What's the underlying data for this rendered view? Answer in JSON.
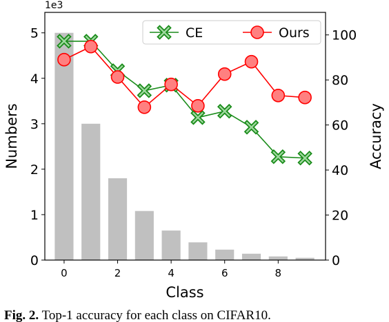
{
  "chart_data": {
    "type": "bar",
    "xlabel": "Class",
    "ylabel": "Numbers",
    "y2label": "Accuracy",
    "offset_label": "1e3",
    "categories": [
      0,
      1,
      2,
      3,
      4,
      5,
      6,
      7,
      8,
      9
    ],
    "xlim": [
      -0.72,
      9.77
    ],
    "xticks": [
      0,
      2,
      4,
      6,
      8
    ],
    "ylim": [
      0,
      5.45
    ],
    "yticks": [
      0,
      1,
      2,
      3,
      4,
      5
    ],
    "y2lim": [
      0,
      110
    ],
    "y2ticks": [
      0,
      20,
      40,
      60,
      80,
      100
    ],
    "legend": "upper right",
    "series": [
      {
        "type": "bar",
        "color": "#c0c0c0",
        "values": [
          5.0,
          3.0,
          1.8,
          1.08,
          0.65,
          0.39,
          0.23,
          0.14,
          0.08,
          0.05
        ]
      },
      {
        "type": "line",
        "name": "CE",
        "axis": "y2",
        "color": "#1a8c1a",
        "marker": "X",
        "values": [
          97.2,
          97.2,
          84.1,
          75.2,
          77.7,
          63.3,
          66.1,
          59.0,
          45.9,
          45.3
        ]
      },
      {
        "type": "line",
        "name": "Ours",
        "axis": "y2",
        "color": "#ff0000",
        "marker": "o",
        "values": [
          89.0,
          94.8,
          81.3,
          67.9,
          78.0,
          68.5,
          82.6,
          88.1,
          73.1,
          72.2
        ]
      }
    ]
  },
  "caption": {
    "label": "Fig. 2.",
    "text": "Top-1 accuracy for each class on CIFAR10."
  }
}
